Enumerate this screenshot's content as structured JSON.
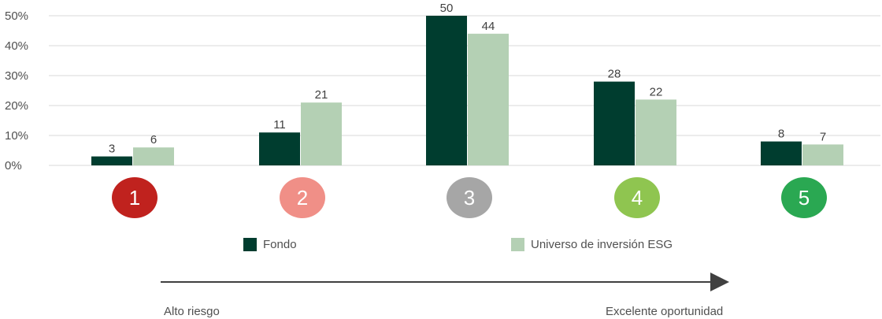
{
  "chart_data": {
    "type": "bar",
    "categories": [
      "1",
      "2",
      "3",
      "4",
      "5"
    ],
    "category_colors": [
      "#c0221e",
      "#f08f87",
      "#a6a6a6",
      "#8fc550",
      "#2aa852"
    ],
    "series": [
      {
        "name": "Fondo",
        "color": "#003d2f",
        "values": [
          3,
          11,
          50,
          28,
          8
        ]
      },
      {
        "name": "Universo de inversión ESG",
        "color": "#b4d0b4",
        "values": [
          6,
          21,
          44,
          22,
          7
        ]
      }
    ],
    "ylim": [
      0,
      50
    ],
    "yticks": [
      0,
      10,
      20,
      30,
      40,
      50
    ],
    "ytick_labels": [
      "0%",
      "10%",
      "20%",
      "30%",
      "40%",
      "50%"
    ],
    "grid": true,
    "legend": "bottom"
  },
  "arrow": {
    "start_label": "Alto riesgo",
    "end_label": "Excelente oportunidad"
  }
}
